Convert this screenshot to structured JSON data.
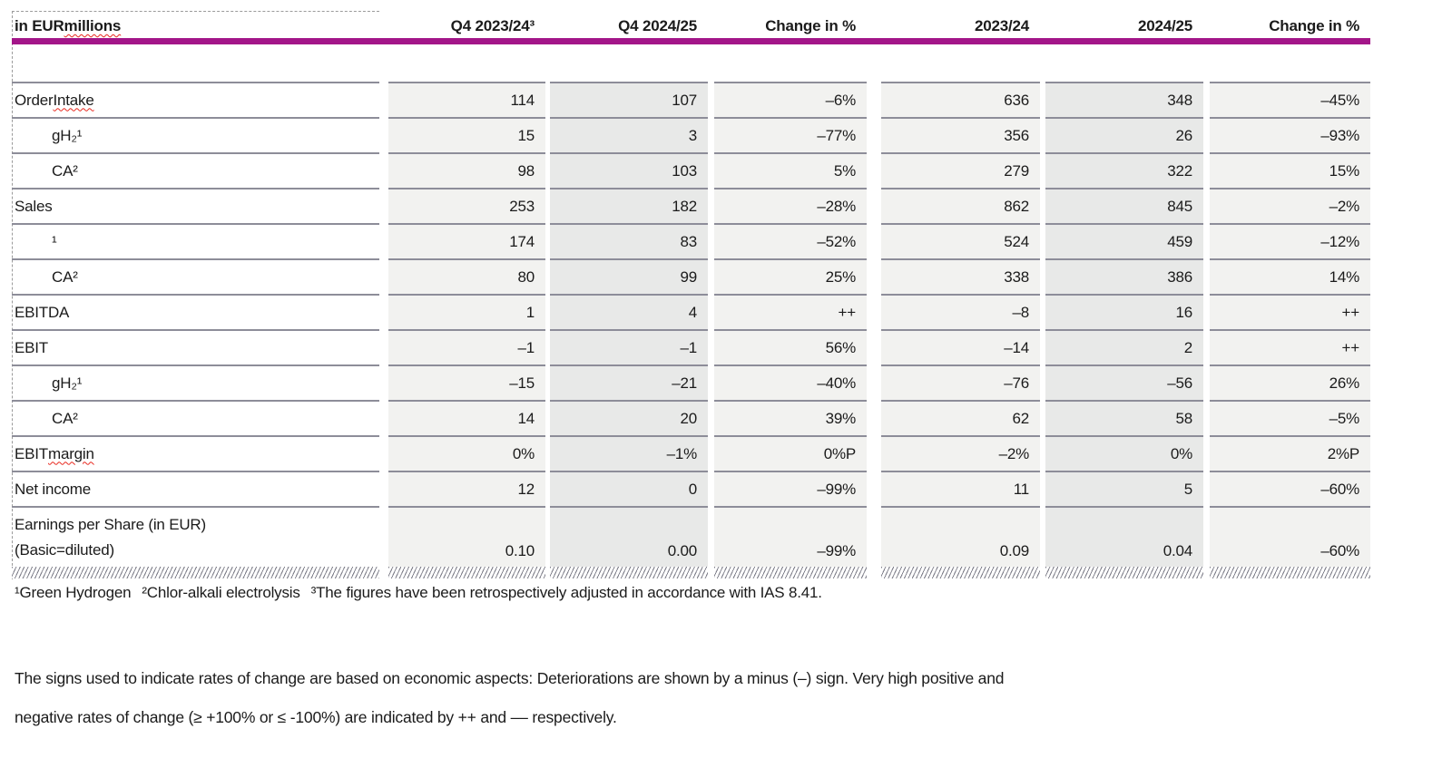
{
  "colors": {
    "magenta_rule": "#a31689",
    "row_line": "#8d8d99",
    "shade_light": "#f2f2f0",
    "shade_dark": "#e8e9e8",
    "squiggle_red": "#e8281e"
  },
  "table": {
    "unit_label": {
      "pre": "in EUR ",
      "wavy": "millions"
    },
    "columns": [
      "Q4 2023/24³",
      "Q4 2024/25",
      "Change in %",
      "2023/24",
      "2024/25",
      "Change in %"
    ],
    "rows": [
      {
        "pre": "Order ",
        "wavy": "Intake",
        "indent": false,
        "values": [
          "114",
          "107",
          "–6%",
          "636",
          "348",
          "–45%"
        ]
      },
      {
        "pre": "gH₂¹",
        "wavy": "",
        "indent": true,
        "values": [
          "15",
          "3",
          "–77%",
          "356",
          "26",
          "–93%"
        ]
      },
      {
        "pre": "CA²",
        "wavy": "",
        "indent": true,
        "values": [
          "98",
          "103",
          "5%",
          "279",
          "322",
          "15%"
        ]
      },
      {
        "pre": "Sales",
        "wavy": "",
        "indent": false,
        "values": [
          "253",
          "182",
          "–28%",
          "862",
          "845",
          "–2%"
        ]
      },
      {
        "pre": "¹",
        "wavy": "",
        "indent": true,
        "values": [
          "174",
          "83",
          "–52%",
          "524",
          "459",
          "–12%"
        ]
      },
      {
        "pre": "CA²",
        "wavy": "",
        "indent": true,
        "values": [
          "80",
          "99",
          "25%",
          "338",
          "386",
          "14%"
        ]
      },
      {
        "pre": "EBITDA",
        "wavy": "",
        "indent": false,
        "values": [
          "1",
          "4",
          "++",
          "–8",
          "16",
          "++"
        ]
      },
      {
        "pre": "EBIT",
        "wavy": "",
        "indent": false,
        "values": [
          "–1",
          "–1",
          "56%",
          "–14",
          "2",
          "++"
        ]
      },
      {
        "pre": "gH₂¹",
        "wavy": "",
        "indent": true,
        "values": [
          "–15",
          "–21",
          "–40%",
          "–76",
          "–56",
          "26%"
        ]
      },
      {
        "pre": "CA²",
        "wavy": "",
        "indent": true,
        "values": [
          "14",
          "20",
          "39%",
          "62",
          "58",
          "–5%"
        ]
      },
      {
        "pre": "EBIT ",
        "wavy": "margin",
        "indent": false,
        "values": [
          "0%",
          "–1%",
          "0%P",
          "–2%",
          "0%",
          "2%P"
        ]
      },
      {
        "pre": "Net income",
        "wavy": "",
        "indent": false,
        "values": [
          "12",
          "0",
          "–99%",
          "11",
          "5",
          "–60%"
        ]
      },
      {
        "pre": "Earnings per Share (in EUR)",
        "wavy": "",
        "line2": "(Basic=diluted)",
        "indent": false,
        "tall": true,
        "values": [
          "0.10",
          "0.00",
          "–99%",
          "0.09",
          "0.04",
          "–60%"
        ]
      }
    ]
  },
  "footnotes": [
    "¹Green Hydrogen",
    "²Chlor-alkali electrolysis",
    "³The figures have been retrospectively adjusted in accordance with IAS 8.41."
  ],
  "change_note_lines": [
    "The signs used to indicate rates of change are based on economic aspects: Deteriorations are shown by a minus (–) sign. Very high positive and",
    "negative rates of change (≥ +100% or ≤ -100%) are indicated by ++ and –– respectively."
  ]
}
